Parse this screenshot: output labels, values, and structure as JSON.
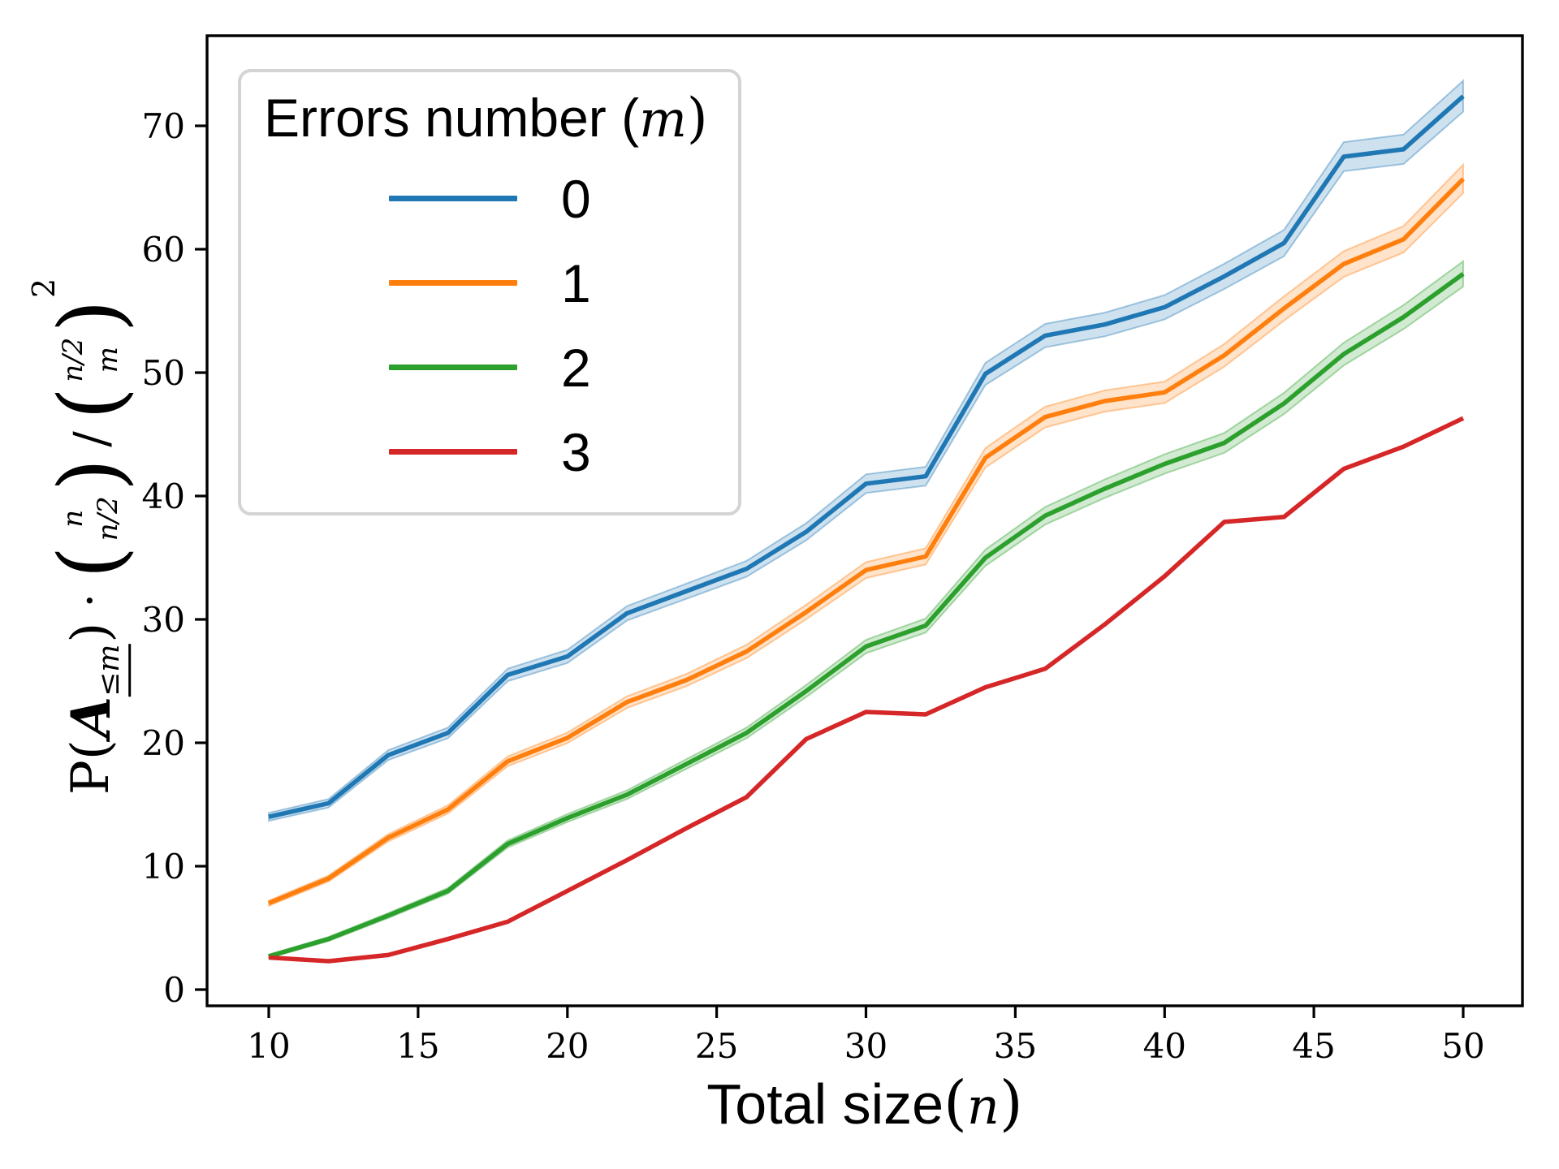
{
  "figure": {
    "background": "#ffffff",
    "frame_color": "#000000"
  },
  "legend": {
    "title_prefix": "Errors number (",
    "title_var": "m",
    "title_suffix": ")",
    "position": "upper left"
  },
  "xlabel": {
    "prefix": "Total size ",
    "open": "(",
    "var": "n",
    "close": ")"
  },
  "ylabel": {
    "p": "P(",
    "a": "A",
    "a_sub": "≤m",
    "close_paren": ")",
    "dot": "·",
    "binom1_top": "n",
    "binom1_bottom": "n/2",
    "slash": "/",
    "binom2_top": "n/2",
    "binom2_bottom": "m",
    "sup": "2"
  },
  "chart_data": {
    "type": "line",
    "title": "",
    "xlabel": "Total size (n)",
    "ylabel": "P(A_{<=m}) * binom(n, n/2) / binom(n/2, m)^2",
    "legend_title": "Errors number (m)",
    "legend_position": "upper left",
    "grid": false,
    "xlim": [
      7.9,
      52.0
    ],
    "ylim": [
      -1.3,
      77.3
    ],
    "xticks": [
      10,
      15,
      20,
      25,
      30,
      35,
      40,
      45,
      50
    ],
    "yticks": [
      0,
      10,
      20,
      30,
      40,
      50,
      60,
      70
    ],
    "x": [
      10,
      12,
      14,
      16,
      18,
      20,
      22,
      24,
      26,
      28,
      30,
      32,
      34,
      36,
      38,
      40,
      42,
      44,
      46,
      48,
      50
    ],
    "series": [
      {
        "name": "m=0",
        "label": "0",
        "color": "#1f77b4",
        "band": true,
        "values": [
          14.0,
          15.1,
          19.0,
          20.8,
          25.5,
          27.0,
          30.5,
          32.3,
          34.1,
          37.1,
          41.0,
          41.6,
          49.9,
          53.0,
          53.9,
          55.3,
          57.8,
          60.5,
          67.5,
          68.1,
          72.4
        ]
      },
      {
        "name": "m=1",
        "label": "1",
        "color": "#ff7f0e",
        "band": true,
        "values": [
          7.0,
          9.0,
          12.3,
          14.6,
          18.5,
          20.4,
          23.3,
          25.1,
          27.4,
          30.6,
          34.0,
          35.1,
          43.1,
          46.4,
          47.7,
          48.4,
          51.4,
          55.2,
          58.8,
          60.8,
          65.7
        ]
      },
      {
        "name": "m=2",
        "label": "2",
        "color": "#2ca02c",
        "band": true,
        "values": [
          2.7,
          4.1,
          6.0,
          8.0,
          11.8,
          13.9,
          15.8,
          18.3,
          20.8,
          24.2,
          27.8,
          29.5,
          35.0,
          38.4,
          40.6,
          42.6,
          44.3,
          47.5,
          51.5,
          54.5,
          58.0
        ]
      },
      {
        "name": "m=3",
        "label": "3",
        "color": "#d62728",
        "band": false,
        "values": [
          2.6,
          2.3,
          2.8,
          4.1,
          5.5,
          8.0,
          10.5,
          13.1,
          15.6,
          20.3,
          22.5,
          22.3,
          24.5,
          26.0,
          29.6,
          33.5,
          37.9,
          38.3,
          42.2,
          44.0,
          46.3
        ]
      }
    ]
  }
}
